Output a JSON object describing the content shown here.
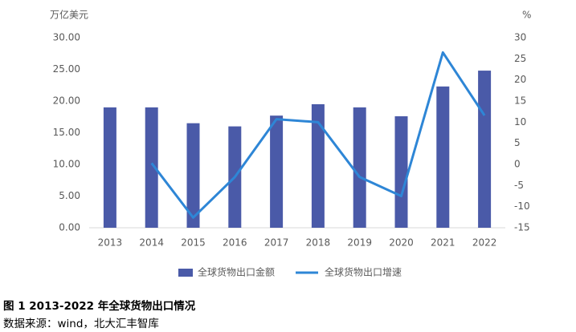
{
  "chart_data": {
    "type": "combo",
    "ylabel": "万亿美元",
    "y2label": "%",
    "categories": [
      "2013",
      "2014",
      "2015",
      "2016",
      "2017",
      "2018",
      "2019",
      "2020",
      "2021",
      "2022"
    ],
    "series": [
      {
        "name": "全球货物出口金额",
        "type": "bar",
        "color": "#4a5aa8",
        "values": [
          19.0,
          19.0,
          16.5,
          16.0,
          17.7,
          19.5,
          19.0,
          17.6,
          22.3,
          24.8
        ]
      },
      {
        "name": "全球货物出口增速",
        "type": "line",
        "axis": "y2",
        "color": "#2e86d6",
        "values": [
          null,
          0.3,
          -12.6,
          -3.0,
          10.7,
          10.0,
          -3.0,
          -7.5,
          26.5,
          11.6
        ]
      }
    ],
    "ylim": [
      0,
      30
    ],
    "yticks": [
      {
        "value": 0,
        "label": "0.00"
      },
      {
        "value": 5,
        "label": "5.00"
      },
      {
        "value": 10,
        "label": "10.00"
      },
      {
        "value": 15,
        "label": "15.00"
      },
      {
        "value": 20,
        "label": "20.00"
      },
      {
        "value": 25,
        "label": "25.00"
      },
      {
        "value": 30,
        "label": "30.00"
      }
    ],
    "y2lim": [
      -15,
      30
    ],
    "y2ticks": [
      -15,
      -10,
      -5,
      0,
      5,
      10,
      15,
      20,
      25,
      30
    ],
    "legend": "bottom"
  },
  "caption": {
    "title": "图 1 2013-2022 年全球货物出口情况",
    "source": "数据来源：wind，北大汇丰智库"
  }
}
